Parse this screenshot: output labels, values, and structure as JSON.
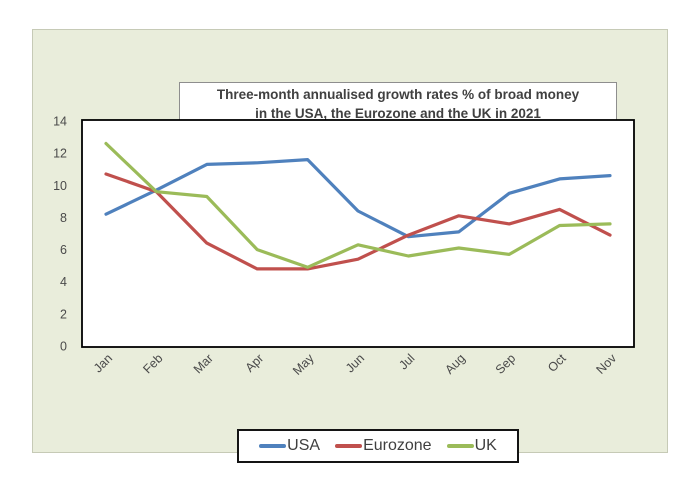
{
  "figure": {
    "title_line1": "Three-month annualised growth rates % of broad money",
    "title_line2": "in the USA, the Eurozone and the UK in 2021",
    "panel_bg": "#E9EDDB",
    "title_text_color": "#404040",
    "axis_text_color": "#4a4a4a"
  },
  "chart_data": {
    "type": "line",
    "title": "Three-month annualised growth rates % of broad money in the USA, the Eurozone and the UK in 2021",
    "categories": [
      "Jan",
      "Feb",
      "Mar",
      "Apr",
      "May",
      "Jun",
      "Jul",
      "Aug",
      "Sep",
      "Oct",
      "Nov"
    ],
    "series": [
      {
        "name": "USA",
        "color": "#4F81BD",
        "values": [
          8.2,
          9.7,
          11.3,
          11.4,
          11.6,
          8.4,
          6.8,
          7.1,
          9.5,
          10.4,
          10.6
        ]
      },
      {
        "name": "Eurozone",
        "color": "#C0504D",
        "values": [
          10.7,
          9.6,
          6.4,
          4.8,
          4.8,
          5.4,
          6.9,
          8.1,
          7.6,
          8.5,
          6.9
        ]
      },
      {
        "name": "UK",
        "color": "#9BBB59",
        "values": [
          12.6,
          9.6,
          9.3,
          6.0,
          4.9,
          6.3,
          5.6,
          6.1,
          5.7,
          7.5,
          7.6
        ]
      }
    ],
    "xlabel": "",
    "ylabel": "",
    "ylim": [
      0,
      14
    ],
    "ytick_step": 2,
    "grid": false,
    "legend_position": "bottom",
    "x_tick_rotation": -45
  }
}
